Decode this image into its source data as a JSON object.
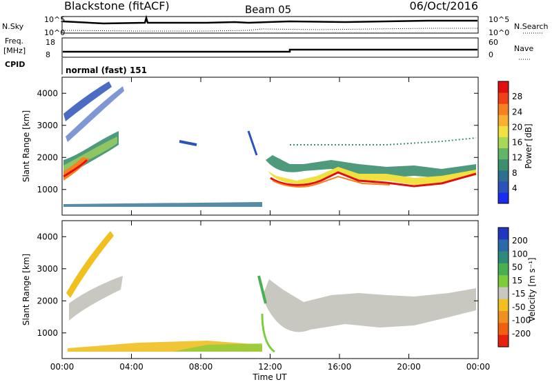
{
  "header": {
    "station": "Blackstone (fitACF)",
    "beam": "Beam 05",
    "date": "06/Oct/2016"
  },
  "noise_panel": {
    "left_label": "N.Sky",
    "right_label": "N.Search",
    "top_tick": "10^5",
    "bottom_tick": "10^0"
  },
  "freq_panel": {
    "left_label_1": "Freq.",
    "left_label_2": "[MHz]",
    "right_label": "Nave",
    "left_ticks": [
      "18",
      "8"
    ],
    "right_ticks": [
      "60",
      "0"
    ]
  },
  "cpid": {
    "label": "CPID",
    "value": "normal (fast) 151"
  },
  "chart_data": [
    {
      "type": "heatmap",
      "quantity": "Power",
      "ylabel": "Slant Range [km]",
      "xlabel": "Time UT",
      "x_ticks": [
        "00:00",
        "04:00",
        "08:00",
        "12:00",
        "16:00",
        "20:00",
        "00:00"
      ],
      "y_ticks": [
        1000,
        2000,
        3000,
        4000
      ],
      "ylim": [
        200,
        4500
      ],
      "colorbar": {
        "label": "Power [dB]",
        "ticks": [
          4,
          8,
          12,
          16,
          20,
          24,
          28
        ],
        "colors": [
          "#1a2cf0",
          "#2a52b8",
          "#2e6e8e",
          "#3c8f6e",
          "#64b468",
          "#a8d858",
          "#f0e040",
          "#f8b030",
          "#f88020",
          "#f04018",
          "#e01010"
        ]
      }
    },
    {
      "type": "heatmap",
      "quantity": "Velocity",
      "ylabel": "Slant Range [km]",
      "xlabel": "Time UT",
      "x_ticks": [
        "00:00",
        "04:00",
        "08:00",
        "12:00",
        "16:00",
        "20:00",
        "00:00"
      ],
      "y_ticks": [
        1000,
        2000,
        3000,
        4000
      ],
      "ylim": [
        200,
        4500
      ],
      "colorbar": {
        "label": "Velocity [m s⁻¹]",
        "ticks": [
          200,
          100,
          50,
          15,
          -15,
          -50,
          -100,
          -200
        ],
        "colors": [
          "#2038c0",
          "#2a6aa8",
          "#2f8a7a",
          "#48b050",
          "#7ccc3c",
          "#c8c8c0",
          "#f0c020",
          "#f09020",
          "#f06010",
          "#e82010"
        ]
      }
    }
  ],
  "time_axis_label": "Time UT"
}
